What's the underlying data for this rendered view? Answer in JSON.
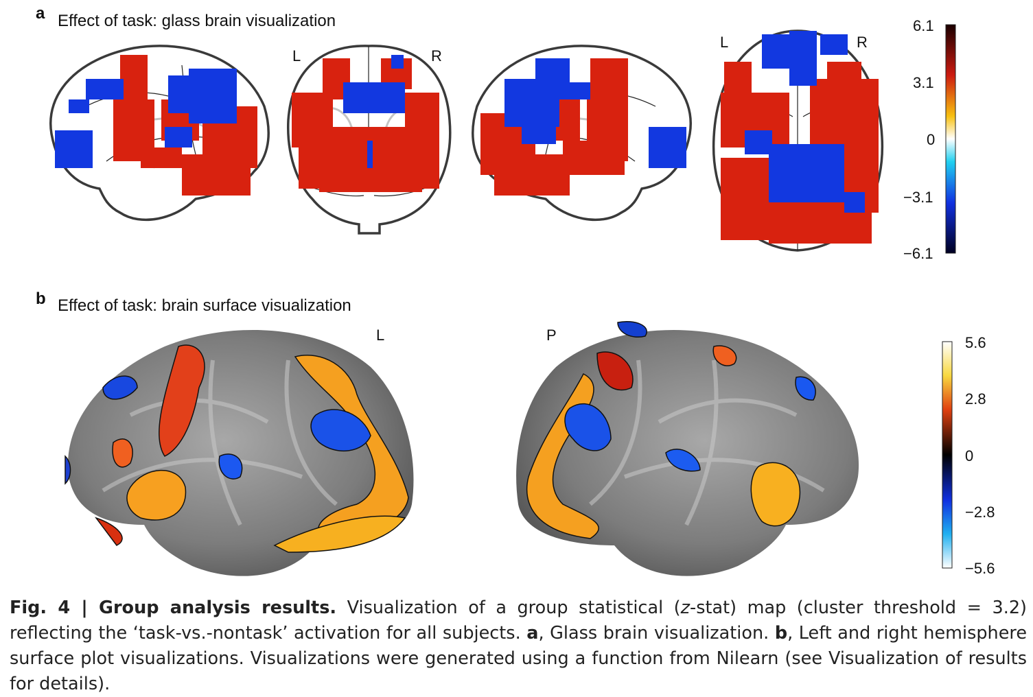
{
  "panel_a": {
    "letter": "a",
    "title": "Effect of task: glass brain visualization",
    "orient_coronal_left": "L",
    "orient_coronal_right": "R",
    "orient_axial_left": "L",
    "orient_axial_right": "R",
    "colorbar": {
      "ticks": [
        "6.1",
        "3.1",
        "0",
        "−3.1",
        "−6.1"
      ],
      "range": [
        -6.1,
        6.1
      ]
    }
  },
  "panel_b": {
    "letter": "b",
    "title": "Effect of task: brain surface visualization",
    "orient_left": "L",
    "orient_posterior": "P",
    "orient_lateral": "L",
    "colorbar": {
      "ticks": [
        "5.6",
        "2.8",
        "0",
        "−2.8",
        "−5.6"
      ],
      "range": [
        -5.6,
        5.6
      ]
    }
  },
  "caption": {
    "label": "Fig. 4 | Group analysis results.",
    "text_1": " Visualization of a group statistical (",
    "z_italic": "z",
    "text_2": "-stat) map (cluster threshold = 3.2) reflecting the ‘task-vs.-nontask’ activation for all subjects. ",
    "a_bold": "a",
    "text_3": ", Glass brain visualization. ",
    "b_bold": "b",
    "text_4": ", Left and right hemisphere surface plot visualizations. Visualizations were generated using a function from Nilearn (see Visualization of results for details)."
  },
  "colors": {
    "hot": "#d8220f",
    "cold": "#1238e0",
    "surface": "#8c8c8c"
  }
}
